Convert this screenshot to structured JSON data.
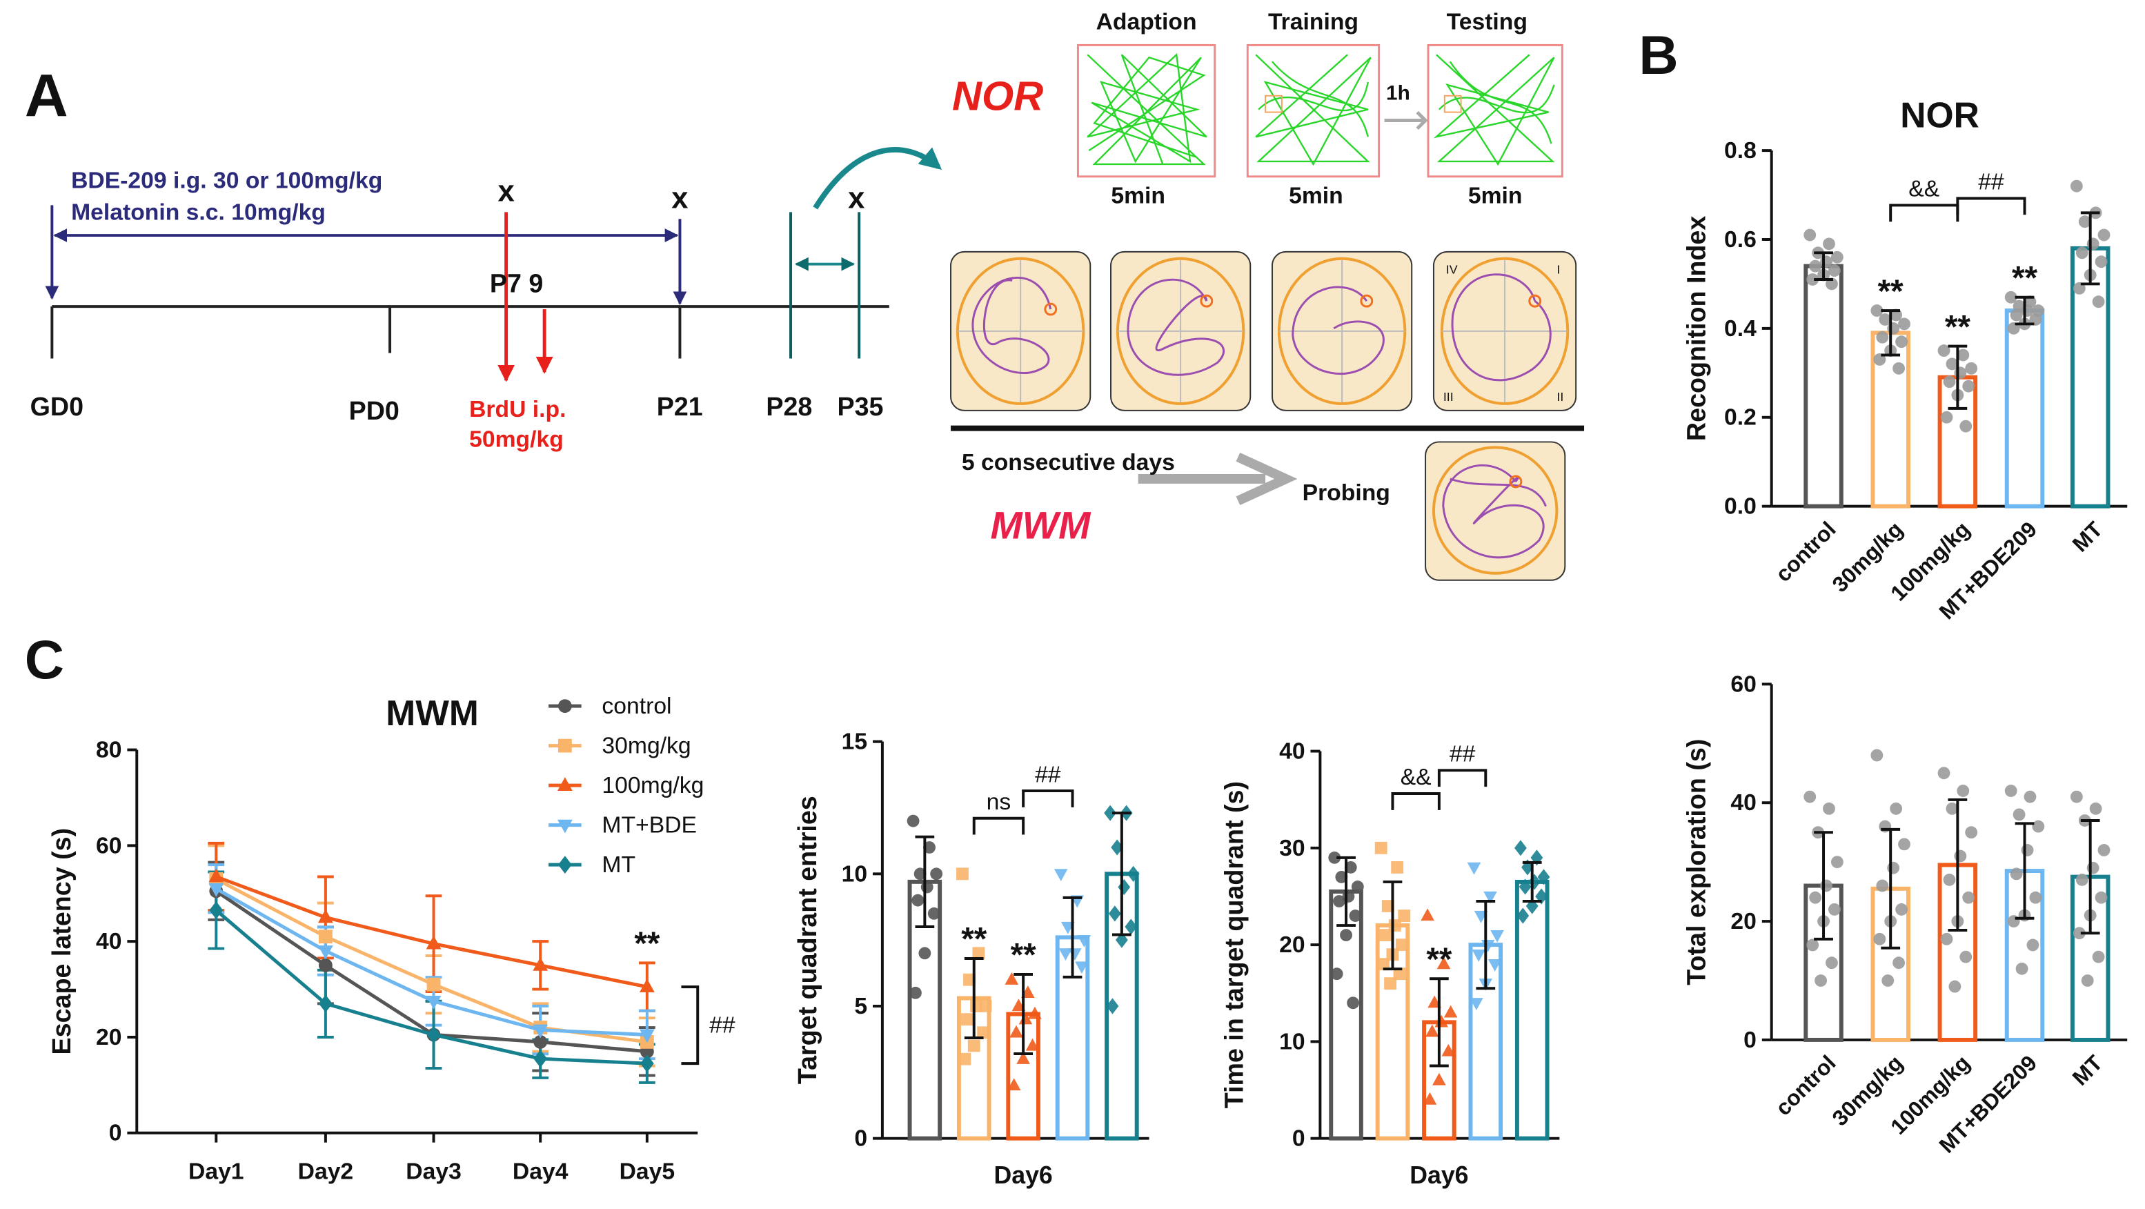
{
  "figure": {
    "panel_a": "A",
    "panel_b": "B",
    "panel_c": "C",
    "treatment_1": "BDE-209  i.g. 30 or 100mg/kg",
    "treatment_2": "Melatonin s.c. 10mg/kg",
    "marks": [
      "x",
      "x",
      "x"
    ],
    "brdu_days": "P7 9",
    "timepoints": [
      "GD0",
      "PD0",
      "P21",
      "P28",
      "P35"
    ],
    "brdu_1": "BrdU i.p.",
    "brdu_2": "50mg/kg",
    "nor_label": "NOR",
    "nor_phases": [
      "Adaption",
      "Training",
      "Testing"
    ],
    "nor_durations": [
      "5min",
      "5min",
      "5min"
    ],
    "interval": "1h",
    "mwm_days": "5 consecutive days",
    "probing": "Probing",
    "mwm_label": "MWM",
    "quadrants": [
      "IV",
      "I",
      "III",
      "II"
    ]
  },
  "chart_data": [
    {
      "type": "bar",
      "title": "NOR",
      "ylabel": "Recognition Index",
      "categories": [
        "control",
        "30mg/kg",
        "100mg/kg",
        "MT+BDE209",
        "MT"
      ],
      "values": [
        0.54,
        0.39,
        0.29,
        0.44,
        0.58
      ],
      "errors": [
        0.03,
        0.05,
        0.07,
        0.03,
        0.08
      ],
      "colors": [
        "#555555",
        "#f9b46a",
        "#f05a1a",
        "#6db6ef",
        "#17808f"
      ],
      "point_color": "#9a9a9a",
      "points": [
        [
          0.61,
          0.59,
          0.57,
          0.56,
          0.55,
          0.54,
          0.53,
          0.52,
          0.51,
          0.5
        ],
        [
          0.44,
          0.43,
          0.42,
          0.41,
          0.4,
          0.38,
          0.37,
          0.35,
          0.33,
          0.31
        ],
        [
          0.35,
          0.34,
          0.32,
          0.31,
          0.3,
          0.28,
          0.27,
          0.25,
          0.2,
          0.18
        ],
        [
          0.47,
          0.46,
          0.45,
          0.44,
          0.44,
          0.43,
          0.42,
          0.41,
          0.4
        ],
        [
          0.72,
          0.66,
          0.64,
          0.61,
          0.59,
          0.57,
          0.55,
          0.52,
          0.49,
          0.46
        ]
      ],
      "significance": [
        null,
        "**",
        "**",
        "**",
        null
      ],
      "comparisons": [
        "&&",
        "##"
      ],
      "ylim": [
        0,
        0.8
      ],
      "yticks": [
        {
          "value": 0,
          "label": "0.0"
        },
        0.2,
        0.4,
        0.6,
        0.8
      ]
    },
    {
      "type": "bar",
      "ylabel": "Total exploration (s)",
      "categories": [
        "control",
        "30mg/kg",
        "100mg/kg",
        "MT+BDE209",
        "MT"
      ],
      "values": [
        26,
        25.5,
        29.5,
        28.5,
        27.5
      ],
      "errors": [
        9,
        10,
        11,
        8,
        9.5
      ],
      "colors": [
        "#555555",
        "#f9b46a",
        "#f05a1a",
        "#6db6ef",
        "#17808f"
      ],
      "point_color": "#9a9a9a",
      "points": [
        [
          41,
          39,
          35,
          30,
          26,
          24,
          22,
          20,
          16,
          13,
          10
        ],
        [
          48,
          39,
          36,
          33,
          29,
          26,
          22,
          20,
          17,
          13,
          10
        ],
        [
          45,
          42,
          39,
          35,
          31,
          27,
          24,
          20,
          17,
          14,
          9
        ],
        [
          42,
          41,
          38,
          36,
          32,
          28,
          24,
          21,
          20,
          16,
          12
        ],
        [
          41,
          39,
          37,
          32,
          29,
          27,
          24,
          21,
          18,
          14,
          10
        ]
      ],
      "ylim": [
        0,
        60
      ],
      "yticks": [
        0,
        20,
        40,
        60
      ]
    },
    {
      "type": "line",
      "title": "MWM",
      "ylabel": "Escape latency (s)",
      "categories": [
        "Day1",
        "Day2",
        "Day3",
        "Day4",
        "Day5"
      ],
      "series": [
        {
          "name": "control",
          "color": "#555555",
          "marker": "circle",
          "values": [
            50.5,
            35,
            20.5,
            19,
            17
          ],
          "errors": [
            6,
            8,
            7,
            6,
            5
          ]
        },
        {
          "name": "30mg/kg",
          "color": "#f9b46a",
          "marker": "square",
          "values": [
            53,
            41,
            31,
            22,
            19
          ],
          "errors": [
            7,
            7,
            6,
            5,
            5
          ]
        },
        {
          "name": "100mg/kg",
          "color": "#f05a1a",
          "marker": "triangle",
          "values": [
            53.5,
            45,
            39.5,
            35,
            30.5
          ],
          "errors": [
            7,
            8.5,
            10,
            5,
            5
          ]
        },
        {
          "name": "MT+BDE",
          "color": "#6db6ef",
          "marker": "triangle-down",
          "values": [
            51,
            38,
            27.5,
            21.5,
            20.5
          ],
          "errors": [
            5,
            5,
            5,
            5,
            5
          ]
        },
        {
          "name": "MT",
          "color": "#17808f",
          "marker": "diamond",
          "values": [
            46.5,
            27,
            20.5,
            15.5,
            14.5
          ],
          "errors": [
            8,
            7,
            7,
            4,
            4
          ]
        }
      ],
      "significance": "**",
      "comparison": "##",
      "ylim": [
        0,
        80
      ],
      "yticks": [
        0,
        20,
        40,
        60,
        80
      ]
    },
    {
      "type": "bar",
      "ylabel": "Target quadrant entries",
      "xlabel": "Day6",
      "values": [
        9.7,
        5.3,
        4.7,
        7.6,
        10
      ],
      "errors": [
        1.7,
        1.5,
        1.5,
        1.5,
        2.3
      ],
      "colors": [
        "#555555",
        "#f9b46a",
        "#f05a1a",
        "#6db6ef",
        "#17808f"
      ],
      "markers": [
        "circle",
        "square",
        "triangle",
        "triangle-down",
        "diamond"
      ],
      "points": [
        [
          12,
          11,
          10,
          10,
          9.5,
          9,
          8.5,
          7,
          5.5
        ],
        [
          10,
          7,
          6,
          5,
          5,
          4.5,
          4,
          3.5,
          3
        ],
        [
          6,
          5.5,
          5,
          4.7,
          4.5,
          4,
          3.5,
          3,
          2
        ],
        [
          10,
          9,
          8,
          7.5,
          7,
          7,
          6.5
        ],
        [
          12.3,
          12.3,
          11,
          10,
          9.5,
          8.5,
          8,
          7.5,
          5
        ]
      ],
      "significance": [
        null,
        "**",
        "**",
        null,
        null
      ],
      "comparisons": [
        "ns",
        "##"
      ],
      "ylim": [
        0,
        15
      ],
      "yticks": [
        0,
        5,
        10,
        15
      ]
    },
    {
      "type": "bar",
      "ylabel": "Time in target quadrant (s)",
      "xlabel": "Day6",
      "values": [
        25.5,
        22,
        12,
        20,
        26.5
      ],
      "errors": [
        3.5,
        4.5,
        4.5,
        4.5,
        2
      ],
      "colors": [
        "#555555",
        "#f9b46a",
        "#f05a1a",
        "#6db6ef",
        "#17808f"
      ],
      "markers": [
        "circle",
        "square",
        "triangle",
        "triangle-down",
        "diamond"
      ],
      "points": [
        [
          29,
          28,
          27,
          26,
          25,
          24.5,
          23,
          21,
          17,
          14
        ],
        [
          30,
          28,
          24,
          23,
          22,
          21,
          20,
          19,
          18,
          17,
          16
        ],
        [
          23,
          18,
          14,
          13,
          12,
          11,
          9,
          6,
          4
        ],
        [
          28,
          25,
          23,
          21,
          20,
          19,
          18,
          16,
          14
        ],
        [
          30,
          29,
          28,
          27,
          26.5,
          26,
          25,
          24,
          23
        ]
      ],
      "significance": [
        null,
        null,
        "**",
        null,
        null
      ],
      "comparisons": [
        "&&",
        "##"
      ],
      "ylim": [
        0,
        40
      ],
      "yticks": [
        0,
        10,
        20,
        30,
        40
      ]
    }
  ]
}
